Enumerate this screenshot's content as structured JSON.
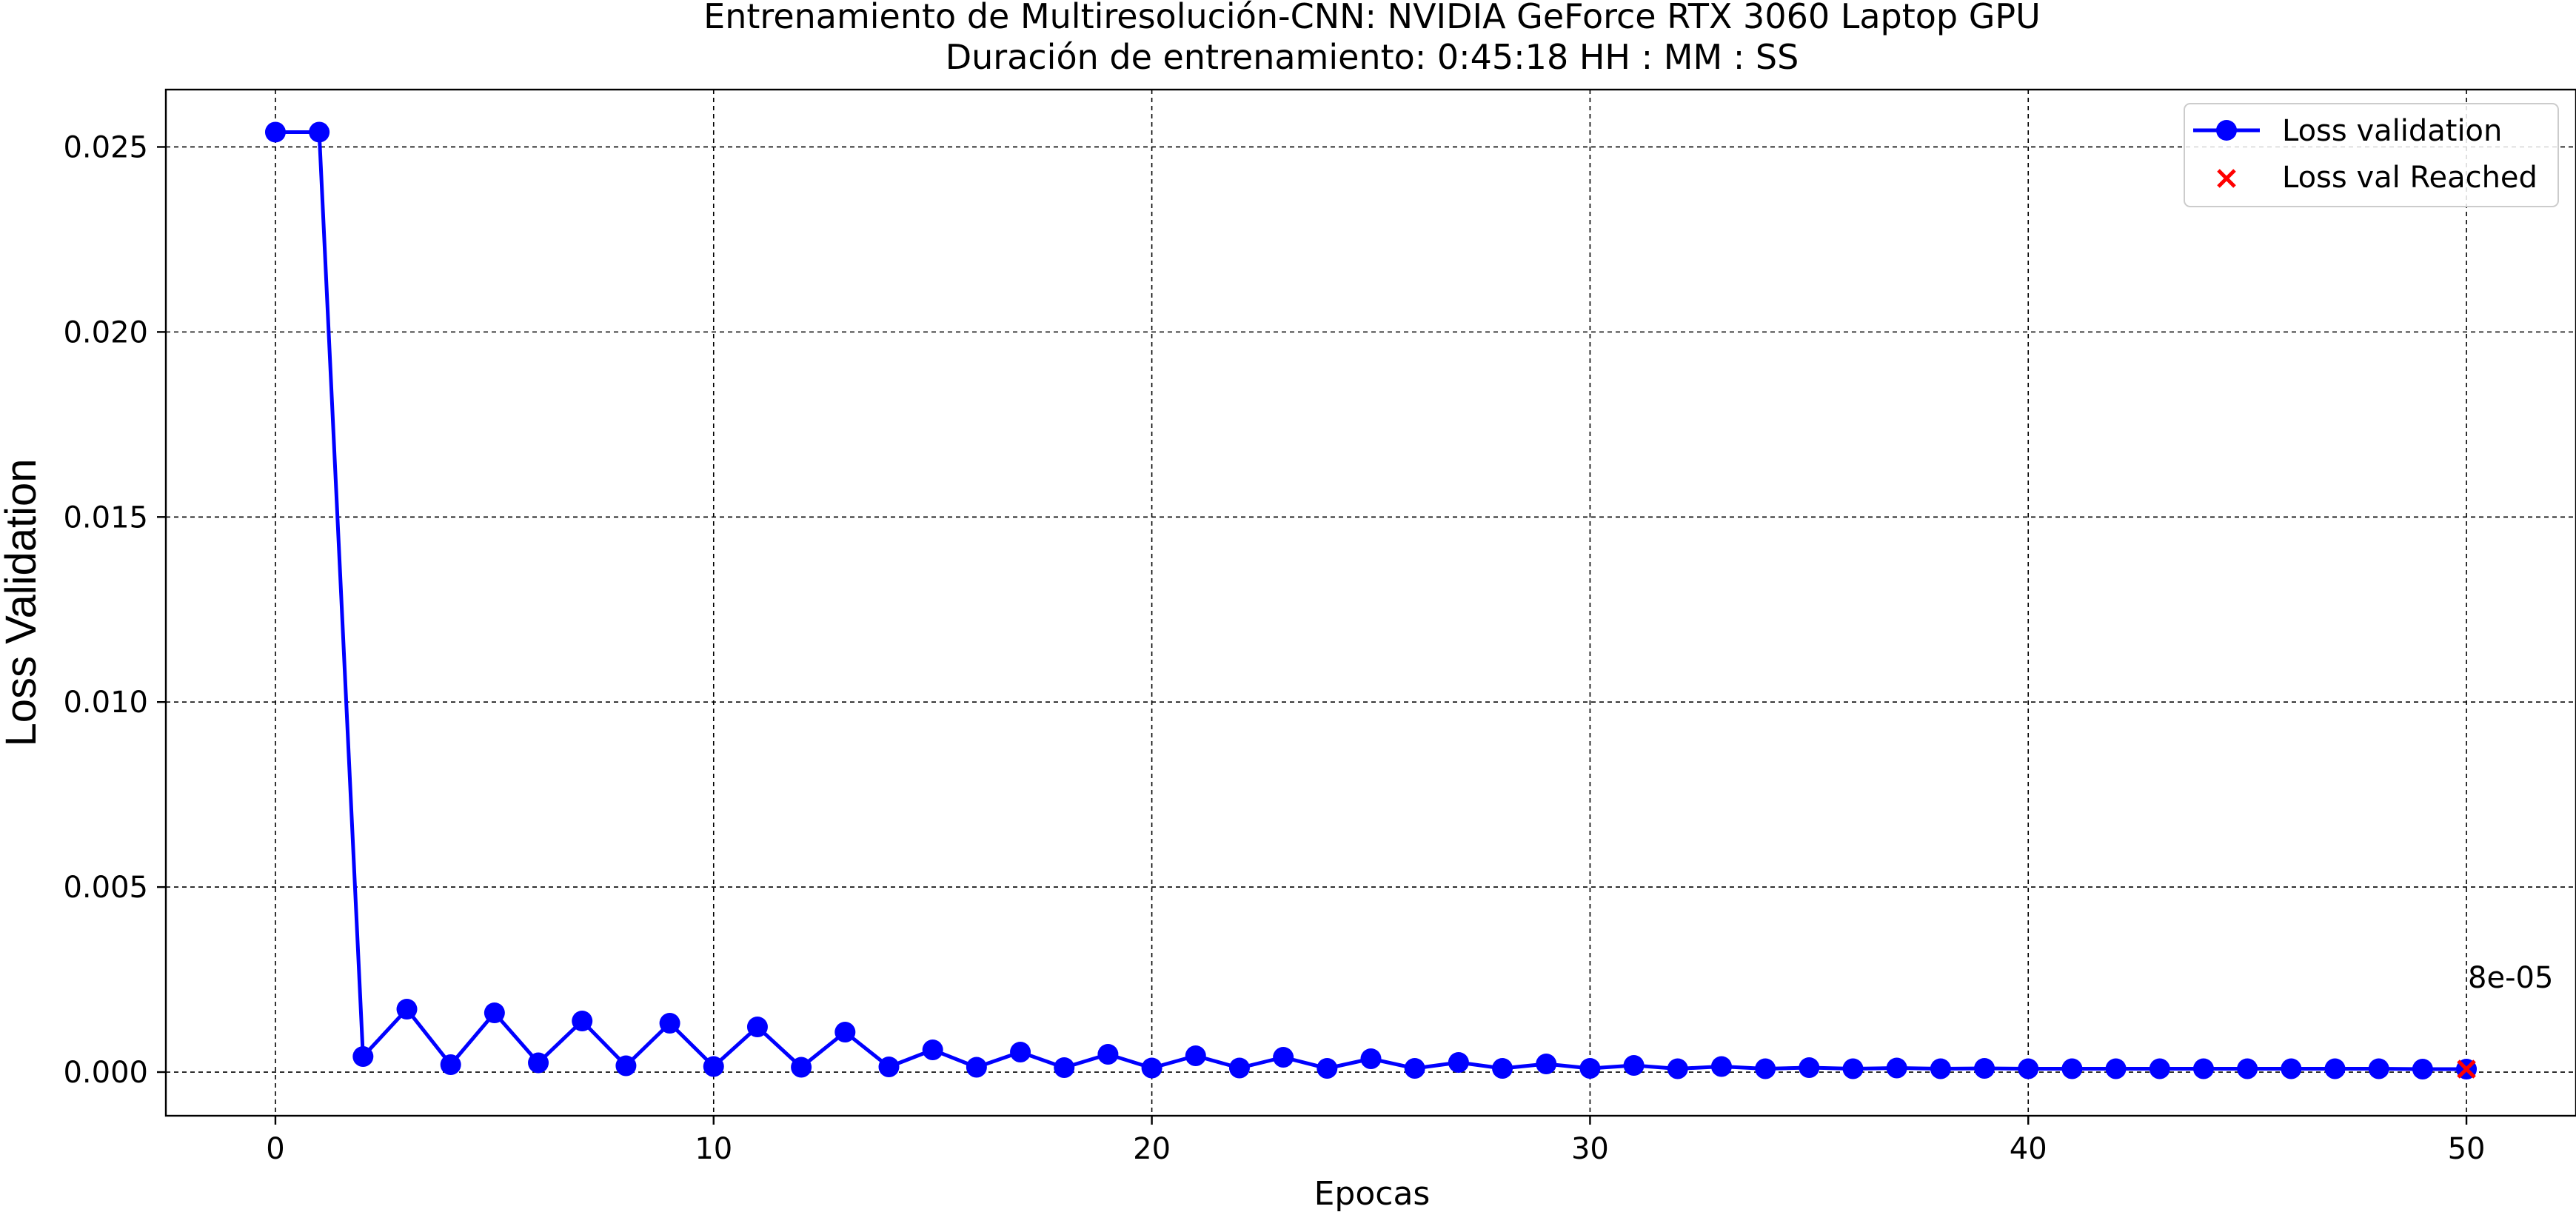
{
  "chart_data": {
    "type": "line",
    "title": "Entrenamiento de Multiresolución-CNN: NVIDIA GeForce RTX 3060 Laptop GPU",
    "subtitle": "Duración de entrenamiento: 0:45:18 HH : MM : SS",
    "xlabel": "Epocas",
    "ylabel": "Loss Validation",
    "xlim": [
      -2.5,
      52.5
    ],
    "ylim": [
      -0.00118,
      0.02655
    ],
    "xticks": [
      0,
      10,
      20,
      30,
      40,
      50
    ],
    "yticks": [
      0.0,
      0.005,
      0.01,
      0.015,
      0.02,
      0.025
    ],
    "xtick_labels": [
      "0",
      "10",
      "20",
      "30",
      "40",
      "50"
    ],
    "ytick_labels": [
      "0.000",
      "0.005",
      "0.010",
      "0.015",
      "0.020",
      "0.025"
    ],
    "grid": true,
    "legend_placement": "top-right",
    "series": [
      {
        "name": "Loss validation",
        "color": "#0000ff",
        "marker": "circle",
        "x": [
          0,
          1,
          2,
          3,
          4,
          5,
          6,
          7,
          8,
          9,
          10,
          11,
          12,
          13,
          14,
          15,
          16,
          17,
          18,
          19,
          20,
          21,
          22,
          23,
          24,
          25,
          26,
          27,
          28,
          29,
          30,
          31,
          32,
          33,
          34,
          35,
          36,
          37,
          38,
          39,
          40,
          41,
          42,
          43,
          44,
          45,
          46,
          47,
          48,
          49,
          50
        ],
        "values": [
          0.0254,
          0.0254,
          0.00042,
          0.0017,
          0.0002,
          0.0016,
          0.00025,
          0.00138,
          0.00017,
          0.00132,
          0.00015,
          0.00122,
          0.00013,
          0.00108,
          0.00014,
          0.0006,
          0.00013,
          0.00054,
          0.00012,
          0.00048,
          0.00011,
          0.00044,
          0.00011,
          0.0004,
          0.0001,
          0.00036,
          0.0001,
          0.00026,
          0.0001,
          0.00022,
          0.0001,
          0.00018,
          9e-05,
          0.00015,
          9e-05,
          0.00012,
          9e-05,
          0.00011,
          9e-05,
          0.0001,
          9e-05,
          9e-05,
          9e-05,
          9e-05,
          9e-05,
          9e-05,
          9e-05,
          9e-05,
          9e-05,
          8e-05,
          8e-05
        ]
      },
      {
        "name": "Loss val Reached",
        "color": "#ff0000",
        "marker": "x",
        "x": [
          50
        ],
        "values": [
          8e-05
        ]
      }
    ],
    "annotations": [
      {
        "text": "8e-05",
        "x": 50,
        "y": 8e-05
      }
    ]
  }
}
